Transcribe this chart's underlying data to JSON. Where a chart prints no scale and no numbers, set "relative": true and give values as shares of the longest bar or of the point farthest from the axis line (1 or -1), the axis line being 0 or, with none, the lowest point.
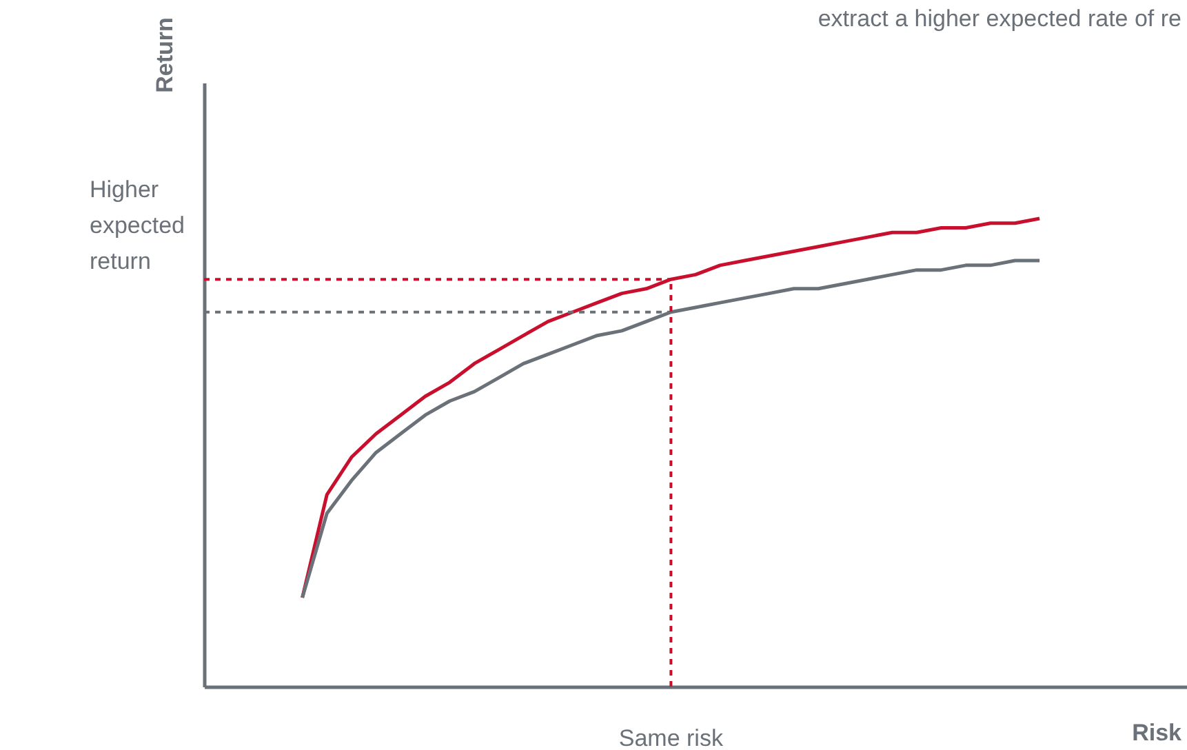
{
  "chart_data": {
    "type": "line",
    "relative": true,
    "xlabel": "Risk",
    "annotations": [
      "extract a higher expected rate of re",
      "Return",
      "Same risk"
    ],
    "categories": [
      null,
      null,
      null,
      null,
      null,
      null,
      null,
      null,
      null,
      null,
      null,
      null,
      null,
      null,
      null,
      null,
      null,
      null,
      null,
      null,
      null,
      null,
      null,
      null,
      null,
      null,
      null,
      null,
      null,
      null,
      null,
      null,
      null,
      null,
      null,
      null,
      null,
      null,
      null,
      null,
      null
    ],
    "series": [
      {
        "color": "#c8102e",
        "values": [
          null,
          null,
          null,
          null,
          0.19,
          0.41,
          0.49,
          0.54,
          0.58,
          0.62,
          0.65,
          0.69,
          0.72,
          0.75,
          0.78,
          0.8,
          0.82,
          0.84,
          0.85,
          0.87,
          0.88,
          0.9,
          0.91,
          0.92,
          0.93,
          0.94,
          0.95,
          0.96,
          0.97,
          0.97,
          0.98,
          0.98,
          0.99,
          0.99,
          1.0,
          null,
          null,
          null,
          null,
          null,
          null
        ]
      },
      {
        "color": "#6b7178",
        "values": [
          null,
          null,
          null,
          null,
          0.19,
          0.37,
          0.44,
          0.5,
          0.54,
          0.58,
          0.61,
          0.63,
          0.66,
          0.69,
          0.71,
          0.73,
          0.75,
          0.76,
          0.78,
          0.8,
          0.81,
          0.82,
          0.83,
          0.84,
          0.85,
          0.85,
          0.86,
          0.87,
          0.88,
          0.89,
          0.89,
          0.9,
          0.9,
          0.91,
          0.91,
          null,
          null,
          null,
          null,
          null,
          null
        ]
      }
    ],
    "ref_lines": [
      {
        "axis": "y",
        "value": 0.87,
        "label": "Higher expected return",
        "color": "#c8102e",
        "line_style": "dashed"
      },
      {
        "axis": "y",
        "value": 0.8,
        "color": "#6b7178",
        "line_style": "dashed"
      }
    ]
  }
}
